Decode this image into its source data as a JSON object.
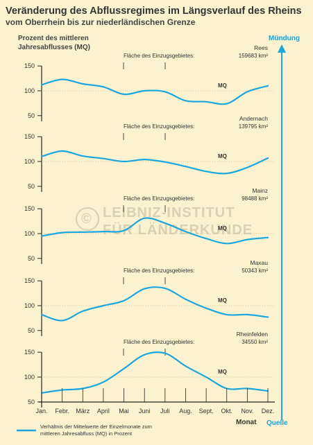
{
  "title": "Veränderung des Abflussregimes im Längsverlauf des Rheins",
  "subtitle": "vom Oberrhein bis zur niederländischen Grenze",
  "ylabel": [
    "Prozent des mittleren",
    "Jahresabflusses (MQ)"
  ],
  "top_right_label": "Mündung",
  "bottom_right_label": "Quelle",
  "xaxis_label": "Monat",
  "legend_text": [
    "Verhältnis der Mittelwerte der Einzelmonate zum",
    "mittleren Jahresabfluss (MQ) in Prozent"
  ],
  "watermark": [
    "LEIBNIZ-INSTITUT",
    "FÜR LÄNDERKUNDE"
  ],
  "colors": {
    "background": "#fcf2cf",
    "line": "#18a7e0",
    "axis": "#222222",
    "grid": "#777777"
  },
  "chart_data": [
    {
      "type": "line",
      "station": "Rees",
      "area_label": "Fläche des Einzugsgebietes:",
      "area": "159683 km²",
      "mq_label": "MQ",
      "x": [
        "Jan.",
        "Febr.",
        "März",
        "April",
        "Mai",
        "Juni",
        "Juli",
        "Aug.",
        "Sept.",
        "Okt.",
        "Nov.",
        "Dez."
      ],
      "values": [
        112,
        123,
        114,
        108,
        93,
        100,
        98,
        80,
        78,
        74,
        98,
        110
      ],
      "yticks": [
        150,
        100,
        50
      ],
      "ylim": [
        40,
        160
      ]
    },
    {
      "type": "line",
      "station": "Andernach",
      "area_label": "Fläche des Einzugsgebietes:",
      "area": "139795 km²",
      "mq_label": "MQ",
      "x": [
        "Jan.",
        "Febr.",
        "März",
        "April",
        "Mai",
        "Juni",
        "Juli",
        "Aug.",
        "Sept.",
        "Okt.",
        "Nov.",
        "Dez."
      ],
      "values": [
        110,
        121,
        111,
        106,
        100,
        104,
        99,
        90,
        80,
        76,
        88,
        107
      ],
      "yticks": [
        150,
        100,
        50
      ],
      "ylim": [
        40,
        160
      ]
    },
    {
      "type": "line",
      "station": "Mainz",
      "area_label": "Fläche des Einzugsgebietes:",
      "area": "98488 km²",
      "mq_label": "MQ",
      "x": [
        "Jan.",
        "Febr.",
        "März",
        "April",
        "Mai",
        "Juni",
        "Juli",
        "Aug.",
        "Sept.",
        "Okt.",
        "Nov.",
        "Dez."
      ],
      "values": [
        95,
        102,
        103,
        104,
        106,
        131,
        121,
        104,
        90,
        80,
        88,
        92
      ],
      "yticks": [
        150,
        100,
        50
      ],
      "ylim": [
        40,
        160
      ]
    },
    {
      "type": "line",
      "station": "Maxau",
      "area_label": "Fläche des Einzugsgebietes:",
      "area": "50343 km²",
      "mq_label": "MQ",
      "x": [
        "Jan.",
        "Febr.",
        "März",
        "April",
        "Mai",
        "Juni",
        "Juli",
        "Aug.",
        "Sept.",
        "Okt.",
        "Nov.",
        "Dez."
      ],
      "values": [
        82,
        70,
        89,
        100,
        110,
        134,
        135,
        113,
        95,
        82,
        82,
        77
      ],
      "yticks": [
        150,
        100,
        50
      ],
      "ylim": [
        40,
        160
      ]
    },
    {
      "type": "line",
      "station": "Rheinfelden",
      "area_label": "Fläche des Einzugsgebietes:",
      "area": "34550 km²",
      "mq_label": "MQ",
      "x": [
        "Jan.",
        "Febr.",
        "März",
        "April",
        "Mai",
        "Juni",
        "Juli",
        "Aug.",
        "Sept.",
        "Okt.",
        "Nov.",
        "Dez."
      ],
      "values": [
        68,
        74,
        77,
        90,
        117,
        145,
        148,
        122,
        100,
        77,
        77,
        72
      ],
      "yticks": [
        150,
        100,
        50
      ],
      "ylim": [
        40,
        160
      ]
    }
  ]
}
